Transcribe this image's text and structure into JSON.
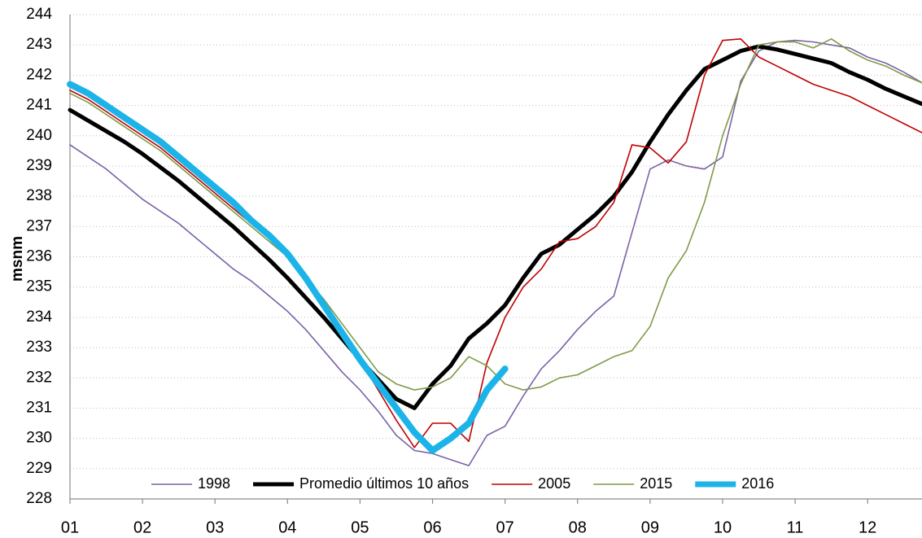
{
  "chart_data": {
    "type": "line",
    "y_label": "msnm",
    "x": [
      1,
      1.25,
      1.5,
      1.75,
      2,
      2.25,
      2.5,
      2.75,
      3,
      3.25,
      3.5,
      3.75,
      4,
      4.25,
      4.5,
      4.75,
      5,
      5.25,
      5.5,
      5.75,
      6,
      6.25,
      6.5,
      6.75,
      7,
      7.25,
      7.5,
      7.75,
      8,
      8.25,
      8.5,
      8.75,
      9,
      9.25,
      9.5,
      9.75,
      10,
      10.25,
      10.5,
      10.75,
      11,
      11.25,
      11.5,
      11.75,
      12,
      12.25,
      12.5,
      12.75
    ],
    "xlim": [
      1,
      12.75
    ],
    "xticks": [
      {
        "value": 1,
        "label": "01"
      },
      {
        "value": 2,
        "label": "02"
      },
      {
        "value": 3,
        "label": "03"
      },
      {
        "value": 4,
        "label": "04"
      },
      {
        "value": 5,
        "label": "05"
      },
      {
        "value": 6,
        "label": "06"
      },
      {
        "value": 7,
        "label": "07"
      },
      {
        "value": 8,
        "label": "08"
      },
      {
        "value": 9,
        "label": "09"
      },
      {
        "value": 10,
        "label": "10"
      },
      {
        "value": 11,
        "label": "11"
      },
      {
        "value": 12,
        "label": "12"
      }
    ],
    "ylim": [
      228,
      244
    ],
    "yticks": [
      228,
      229,
      230,
      231,
      232,
      233,
      234,
      235,
      236,
      237,
      238,
      239,
      240,
      241,
      242,
      243,
      244
    ],
    "grid": true,
    "legend": "bottom",
    "series": [
      {
        "name": "1998",
        "color": "#7b62a6",
        "width": 1.6,
        "values": [
          239.7,
          239.3,
          238.9,
          238.4,
          237.9,
          237.5,
          237.1,
          236.6,
          236.1,
          235.6,
          235.2,
          234.7,
          234.2,
          233.6,
          232.9,
          232.2,
          231.6,
          230.9,
          230.1,
          229.6,
          229.5,
          229.3,
          229.1,
          230.1,
          230.4,
          231.4,
          232.3,
          232.9,
          233.6,
          234.2,
          234.7,
          236.8,
          238.9,
          239.2,
          239.0,
          238.9,
          239.3,
          241.8,
          242.8,
          243.1,
          243.15,
          243.1,
          243.0,
          242.9,
          242.6,
          242.4,
          242.1,
          241.75
        ]
      },
      {
        "name": "Promedio últimos 10 años",
        "color": "#000000",
        "width": 5,
        "values": [
          240.85,
          240.5,
          240.15,
          239.8,
          239.4,
          238.95,
          238.5,
          238.0,
          237.5,
          237.0,
          236.45,
          235.9,
          235.3,
          234.65,
          234.0,
          233.3,
          232.6,
          231.95,
          231.3,
          231.0,
          231.8,
          232.4,
          233.3,
          233.8,
          234.4,
          235.3,
          236.1,
          236.4,
          236.9,
          237.4,
          238.0,
          238.8,
          239.8,
          240.7,
          241.5,
          242.2,
          242.5,
          242.8,
          242.95,
          242.85,
          242.7,
          242.55,
          242.4,
          242.1,
          241.85,
          241.55,
          241.3,
          241.05
        ]
      },
      {
        "name": "2005",
        "color": "#c00000",
        "width": 1.6,
        "values": [
          241.5,
          241.2,
          240.8,
          240.4,
          240.0,
          239.6,
          239.1,
          238.6,
          238.1,
          237.6,
          237.1,
          236.6,
          236.0,
          235.3,
          234.5,
          233.5,
          232.6,
          231.6,
          230.6,
          229.7,
          230.5,
          230.5,
          229.9,
          232.5,
          234.0,
          235.0,
          235.6,
          236.5,
          236.6,
          237.0,
          237.8,
          239.7,
          239.6,
          239.1,
          239.8,
          242.0,
          243.15,
          243.2,
          242.6,
          242.3,
          242.0,
          241.7,
          241.5,
          241.3,
          241.0,
          240.7,
          240.4,
          240.1
        ]
      },
      {
        "name": "2015",
        "color": "#7f9a48",
        "width": 1.6,
        "values": [
          241.4,
          241.1,
          240.7,
          240.3,
          239.9,
          239.5,
          239.0,
          238.5,
          238.0,
          237.5,
          237.0,
          236.5,
          236.0,
          235.3,
          234.6,
          233.8,
          233.0,
          232.2,
          231.8,
          231.6,
          231.7,
          232.0,
          232.7,
          232.4,
          231.8,
          231.6,
          231.7,
          232.0,
          232.1,
          232.4,
          232.7,
          232.9,
          233.7,
          235.3,
          236.2,
          237.8,
          240.0,
          241.7,
          243.0,
          243.1,
          243.1,
          242.9,
          243.2,
          242.8,
          242.5,
          242.3,
          242.0,
          241.75
        ]
      },
      {
        "name": "2016",
        "color": "#1cb4e8",
        "width": 8,
        "values": [
          241.7,
          241.4,
          241.0,
          240.6,
          240.2,
          239.8,
          239.3,
          238.8,
          238.3,
          237.8,
          237.2,
          236.7,
          236.1,
          235.3,
          234.4,
          233.5,
          232.6,
          231.8,
          231.0,
          230.2,
          229.6,
          230.0,
          230.5,
          231.6,
          232.3,
          null,
          null,
          null,
          null,
          null,
          null,
          null,
          null,
          null,
          null,
          null,
          null,
          null,
          null,
          null,
          null,
          null,
          null,
          null,
          null,
          null,
          null,
          null
        ]
      }
    ]
  }
}
